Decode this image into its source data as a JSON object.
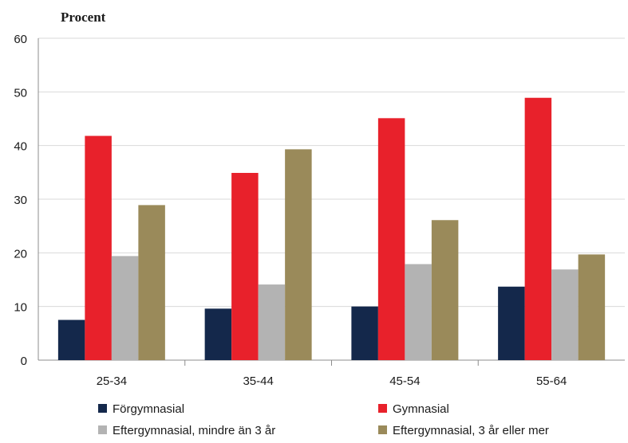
{
  "chart_data": {
    "type": "bar",
    "title": "",
    "unit_label": "Procent",
    "xlabel": "",
    "ylabel": "",
    "categories": [
      "25-34",
      "35-44",
      "45-54",
      "55-64"
    ],
    "series": [
      {
        "name": "Förgymnasial",
        "color": "#14284b",
        "values": [
          7.5,
          9.6,
          10.0,
          13.7
        ]
      },
      {
        "name": "Gymnasial",
        "color": "#e8212b",
        "values": [
          41.8,
          34.9,
          45.1,
          48.9
        ]
      },
      {
        "name": "Eftergymnasial, mindre än 3 år",
        "color": "#b3b3b3",
        "values": [
          19.4,
          14.1,
          17.9,
          16.9
        ]
      },
      {
        "name": "Eftergymnasial, 3 år eller mer",
        "color": "#9a8a5a",
        "values": [
          28.9,
          39.3,
          26.1,
          19.7
        ]
      }
    ],
    "ylim": [
      0,
      60
    ],
    "yticks": [
      0,
      10,
      20,
      30,
      40,
      50,
      60
    ],
    "grid": true,
    "legend_position": "bottom"
  }
}
